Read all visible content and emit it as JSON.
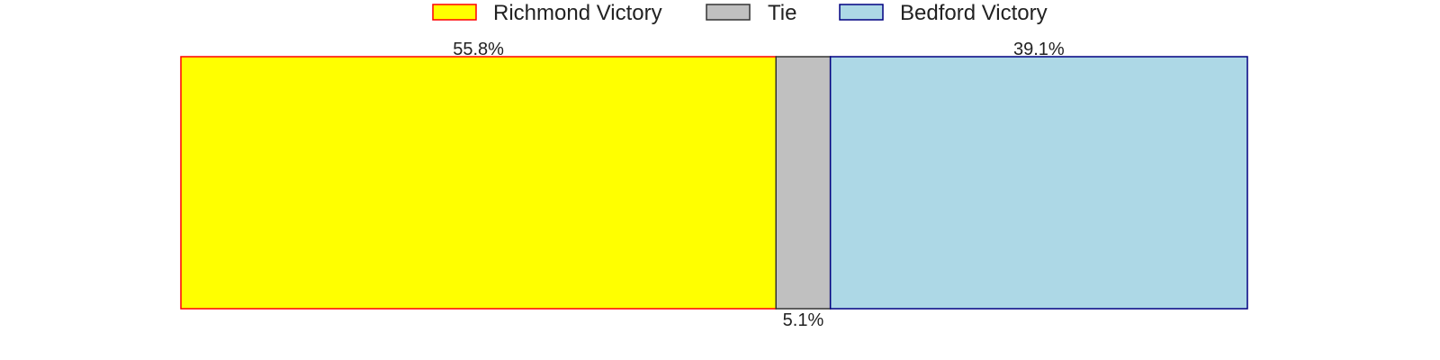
{
  "chart_data": {
    "type": "bar",
    "orientation": "horizontal-stacked",
    "categories": [
      "Richmond Victory",
      "Tie",
      "Bedford Victory"
    ],
    "values": [
      55.8,
      5.1,
      39.1
    ],
    "value_labels": [
      "55.8%",
      "5.1%",
      "39.1%"
    ],
    "label_positions": [
      "top",
      "bottom",
      "top"
    ],
    "unit": "%",
    "colors": {
      "Richmond Victory": {
        "fill": "#ffff00",
        "stroke": "#ff0000"
      },
      "Tie": {
        "fill": "#c0c0c0",
        "stroke": "#333333"
      },
      "Bedford Victory": {
        "fill": "#add8e6",
        "stroke": "#000080"
      }
    },
    "legend": {
      "placement": "top-center",
      "entries": [
        "Richmond Victory",
        "Tie",
        "Bedford Victory"
      ]
    },
    "axes_visible": false,
    "grid": false
  }
}
